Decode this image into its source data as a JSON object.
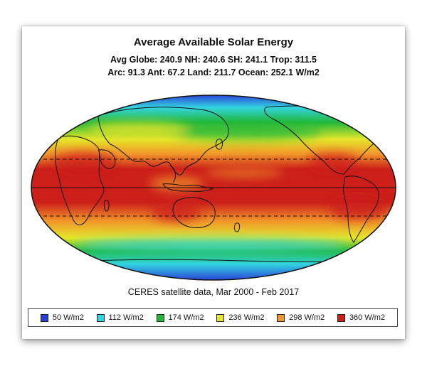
{
  "title": "Average Available Solar Energy",
  "stats_line1": "Avg Globe: 240.9  NH: 240.6  SH: 241.1  Trop: 311.5",
  "stats_line2": "Arc: 91.3  Ant: 67.2  Land: 211.7  Ocean: 252.1 W/m2",
  "source": "CERES satellite data, Mar 2000 - Feb 2017",
  "legend": [
    {
      "label": "50 W/m2",
      "color": "#2a3fd8"
    },
    {
      "label": "112 W/m2",
      "color": "#33d4e0"
    },
    {
      "label": "174 W/m2",
      "color": "#22b83a"
    },
    {
      "label": "236 W/m2",
      "color": "#e6e62a"
    },
    {
      "label": "298 W/m2",
      "color": "#f0962a"
    },
    {
      "label": "360 W/m2",
      "color": "#cc1f1a"
    }
  ],
  "map": {
    "projection": "mollweide",
    "center_longitude": "180",
    "reference_lines": [
      "equator",
      "tropic-of-cancer",
      "tropic-of-capricorn"
    ],
    "colors": {
      "polar": "#2a3fd8",
      "subpolar": "#33d4e0",
      "mid": "#22b83a",
      "subtropic": "#e6e62a",
      "warm": "#f0962a",
      "tropic": "#cc1f1a"
    }
  }
}
